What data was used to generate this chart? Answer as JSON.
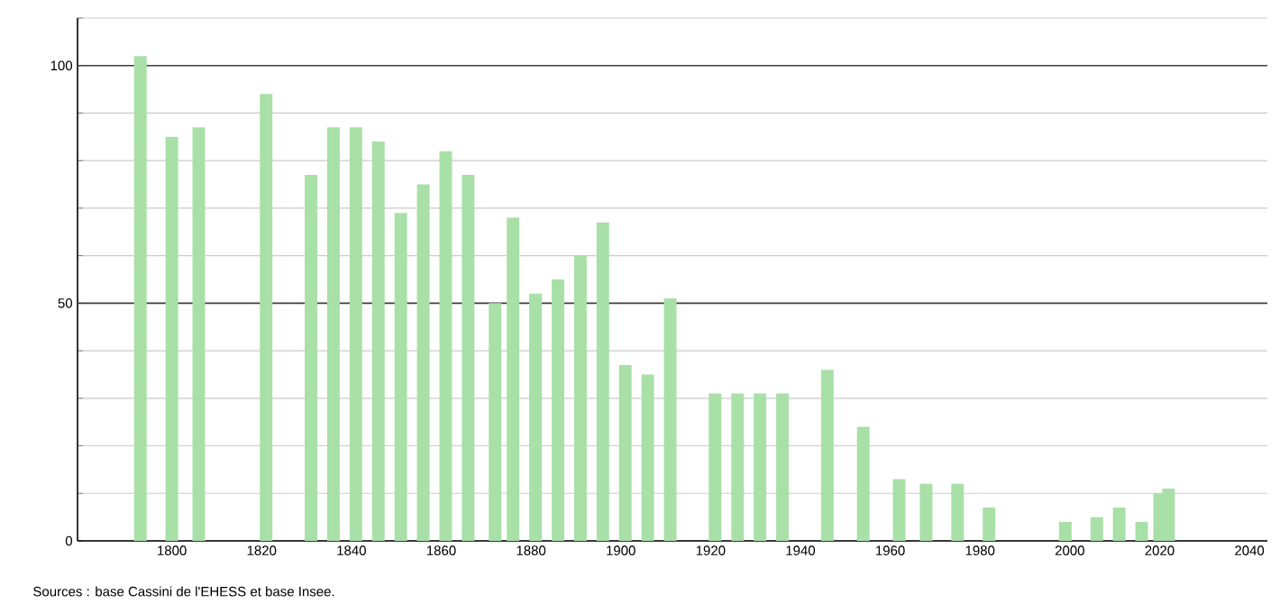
{
  "chart_data": {
    "type": "bar",
    "x": [
      1793,
      1800,
      1806,
      1821,
      1831,
      1836,
      1841,
      1846,
      1851,
      1856,
      1861,
      1866,
      1872,
      1876,
      1881,
      1886,
      1891,
      1896,
      1901,
      1906,
      1911,
      1921,
      1926,
      1931,
      1936,
      1946,
      1954,
      1962,
      1968,
      1975,
      1982,
      1999,
      2006,
      2011,
      2016,
      2020,
      2022
    ],
    "values": [
      102,
      85,
      87,
      94,
      77,
      87,
      87,
      84,
      69,
      75,
      82,
      77,
      50,
      68,
      52,
      55,
      60,
      67,
      37,
      35,
      51,
      31,
      31,
      31,
      31,
      36,
      24,
      13,
      12,
      12,
      7,
      4,
      5,
      7,
      4,
      10,
      11
    ],
    "color": "#a8e0a8",
    "xlim": [
      1779,
      2044
    ],
    "ylim": [
      0,
      110
    ],
    "xticks": [
      1800,
      1820,
      1840,
      1860,
      1880,
      1900,
      1920,
      1940,
      1960,
      1980,
      2000,
      2020,
      2040
    ],
    "yticks": [
      0,
      {
        "value": 10,
        "label": null
      },
      {
        "value": 20,
        "label": null
      },
      {
        "value": 30,
        "label": null
      },
      {
        "value": 40,
        "label": null
      },
      50,
      {
        "value": 60,
        "label": null
      },
      {
        "value": 70,
        "label": null
      },
      {
        "value": 80,
        "label": null
      },
      {
        "value": 90,
        "label": null
      },
      100,
      {
        "value": 110,
        "label": null
      }
    ],
    "grid": "y",
    "annotations": [
      "Sources : base Cassini de l'EHESS et base Insee."
    ]
  }
}
